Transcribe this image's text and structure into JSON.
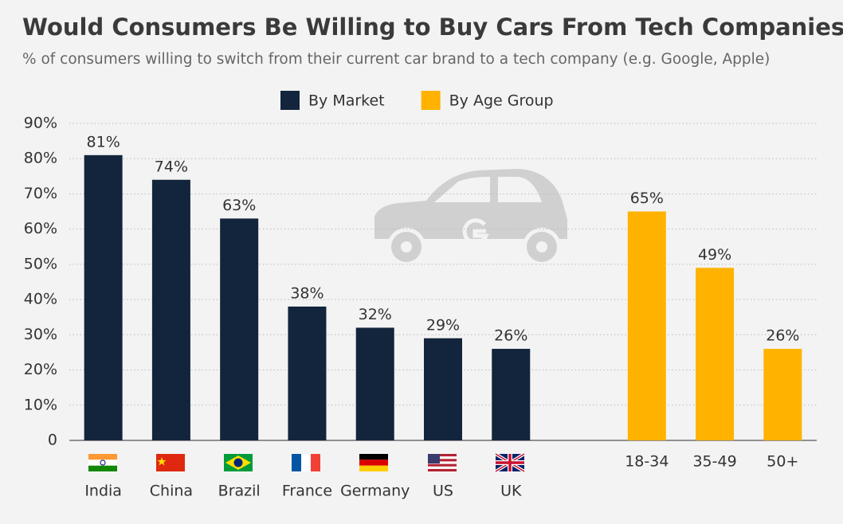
{
  "chart_data": {
    "type": "bar",
    "title": "Would Consumers Be Willing to Buy Cars From Tech Companies?",
    "subtitle": "% of consumers willing to switch from their current car brand to a tech company (e.g. Google, Apple)",
    "categories": [
      "India",
      "China",
      "Brazil",
      "France",
      "Germany",
      "US",
      "UK",
      null,
      "18-34",
      "35-49",
      "50+"
    ],
    "series": [
      {
        "name": "By Market",
        "color": "#13253c",
        "values": [
          81,
          74,
          63,
          38,
          32,
          29,
          26,
          null,
          null,
          null,
          null
        ],
        "value_labels": [
          "81%",
          "74%",
          "63%",
          "38%",
          "32%",
          "29%",
          "26%",
          null,
          null,
          null,
          null
        ]
      },
      {
        "name": "By Age Group",
        "color": "#ffb200",
        "values": [
          null,
          null,
          null,
          null,
          null,
          null,
          null,
          null,
          65,
          49,
          26
        ],
        "value_labels": [
          null,
          null,
          null,
          null,
          null,
          null,
          null,
          null,
          "65%",
          "49%",
          "26%"
        ]
      }
    ],
    "ylim": [
      0,
      90
    ],
    "yticks": [
      0,
      {
        "value": 10,
        "label": "10%"
      },
      {
        "value": 20,
        "label": "20%"
      },
      {
        "value": 30,
        "label": "30%"
      },
      {
        "value": 40,
        "label": "40%"
      },
      {
        "value": 50,
        "label": "50%"
      },
      {
        "value": 60,
        "label": "60%"
      },
      {
        "value": 70,
        "label": "70%"
      },
      {
        "value": 80,
        "label": "80%"
      },
      {
        "value": 90,
        "label": "90%"
      }
    ],
    "grid": true
  }
}
